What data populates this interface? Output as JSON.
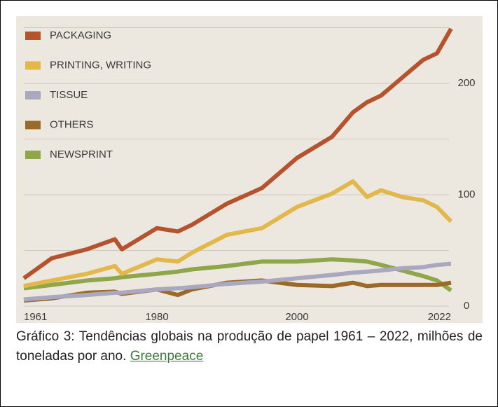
{
  "chart_data": {
    "type": "line",
    "x": [
      1961,
      1965,
      1970,
      1974,
      1975,
      1980,
      1983,
      1985,
      1990,
      1995,
      2000,
      2005,
      2008,
      2010,
      2012,
      2015,
      2018,
      2020,
      2022
    ],
    "series": [
      {
        "name": "PACKAGING",
        "color": "#b5532f",
        "values": [
          25,
          43,
          51,
          60,
          51,
          70,
          67,
          73,
          92,
          106,
          133,
          152,
          174,
          183,
          189,
          205,
          221,
          227,
          249
        ]
      },
      {
        "name": "PRINTING, WRITING",
        "color": "#e2b84a",
        "values": [
          18,
          23,
          29,
          36,
          29,
          42,
          40,
          48,
          64,
          70,
          89,
          101,
          112,
          98,
          104,
          98,
          95,
          89,
          76
        ]
      },
      {
        "name": "TISSUE",
        "color": "#a9a8c0",
        "values": [
          6,
          8,
          10,
          12,
          12,
          15,
          16,
          17,
          20,
          22,
          25,
          28,
          30,
          31,
          32,
          34,
          35,
          37,
          38
        ]
      },
      {
        "name": "OTHERS",
        "color": "#9a6a2a",
        "values": [
          5,
          7,
          12,
          13,
          11,
          15,
          10,
          15,
          21,
          23,
          19,
          18,
          21,
          18,
          19,
          19,
          19,
          19,
          21
        ]
      },
      {
        "name": "NEWSPRINT",
        "color": "#8fa64a",
        "values": [
          16,
          19,
          23,
          25,
          26,
          29,
          31,
          33,
          36,
          40,
          40,
          42,
          41,
          40,
          37,
          32,
          27,
          23,
          14
        ]
      }
    ],
    "xlim": [
      1961,
      2022
    ],
    "xticks": [
      1961,
      1980,
      2000,
      2022
    ],
    "ylim": [
      0,
      255
    ],
    "yticks": [
      0,
      100,
      200
    ],
    "grid_lines": [
      50,
      150,
      250
    ],
    "grid": true,
    "legend": "upper left"
  },
  "caption": {
    "text": "Gráfico 3: Tendências globais na produção de papel 1961 – 2022, milhões de toneladas por ano.",
    "link": "Greenpeace"
  }
}
